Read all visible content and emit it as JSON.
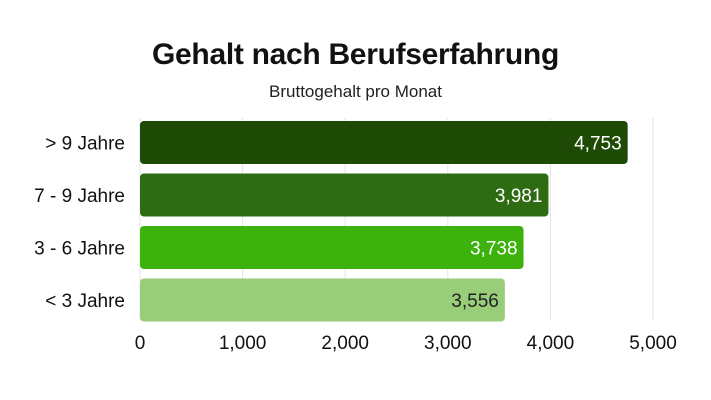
{
  "title": "Gehalt nach Berufserfahrung",
  "subtitle": "Bruttogehalt pro Monat",
  "chart_data": {
    "type": "bar",
    "orientation": "horizontal",
    "title": "Gehalt nach Berufserfahrung",
    "subtitle": "Bruttogehalt pro Monat",
    "categories": [
      "> 9 Jahre",
      "7 - 9 Jahre",
      "3 - 6 Jahre",
      "< 3 Jahre"
    ],
    "values": [
      4753,
      3981,
      3738,
      3556
    ],
    "value_labels": [
      "4,753",
      "3,981",
      "3,738",
      "3,556"
    ],
    "colors": [
      "#1d4a04",
      "#2e6c14",
      "#3db10c",
      "#98cd79"
    ],
    "label_colors": [
      "#ffffff",
      "#ffffff",
      "#ffffff",
      "#222222"
    ],
    "xlim": [
      0,
      5000
    ],
    "xticks": [
      0,
      1000,
      2000,
      3000,
      4000,
      5000
    ],
    "xtick_labels": [
      "0",
      "1,000",
      "2,000",
      "3,000",
      "4,000",
      "5,000"
    ],
    "grid": true,
    "legend": "none"
  }
}
